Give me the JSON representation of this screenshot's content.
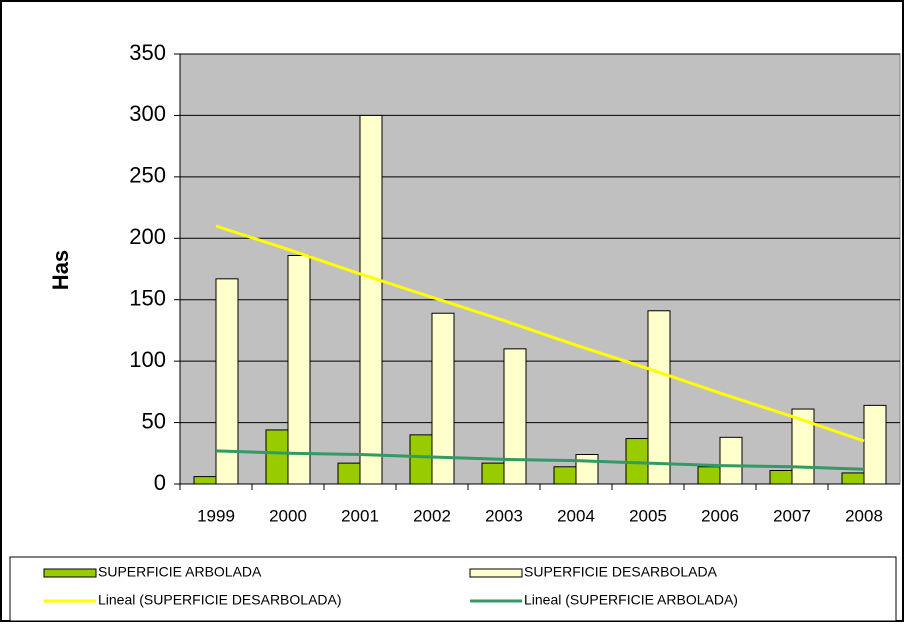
{
  "chart_data": {
    "type": "bar",
    "ylabel": "Has",
    "categories": [
      "1999",
      "2000",
      "2001",
      "2002",
      "2003",
      "2004",
      "2005",
      "2006",
      "2007",
      "2008"
    ],
    "series": [
      {
        "name": "SUPERFICIE ARBOLADA",
        "color": "#99cc00",
        "values": [
          6,
          44,
          17,
          40,
          17,
          14,
          37,
          14,
          11,
          9
        ]
      },
      {
        "name": "SUPERFICIE DESARBOLADA",
        "color": "#ffffcc",
        "values": [
          167,
          186,
          300,
          139,
          110,
          24,
          141,
          38,
          61,
          64
        ]
      },
      {
        "name": "Lineal (SUPERFICIE DESARBOLADA)",
        "type": "line",
        "color": "#ffff00",
        "values": [
          210,
          191,
          171,
          152,
          133,
          113,
          94,
          74,
          55,
          35
        ]
      },
      {
        "name": "Lineal (SUPERFICIE ARBOLADA)",
        "type": "line",
        "color": "#339966",
        "values": [
          27,
          25,
          24,
          22,
          20,
          19,
          17,
          15,
          14,
          12
        ]
      }
    ],
    "ylim": [
      0,
      350
    ],
    "yticks": [
      0,
      50,
      100,
      150,
      200,
      250,
      300,
      350
    ],
    "grid": true,
    "plot_background": "#c0c0c0",
    "legend": "bottom"
  }
}
